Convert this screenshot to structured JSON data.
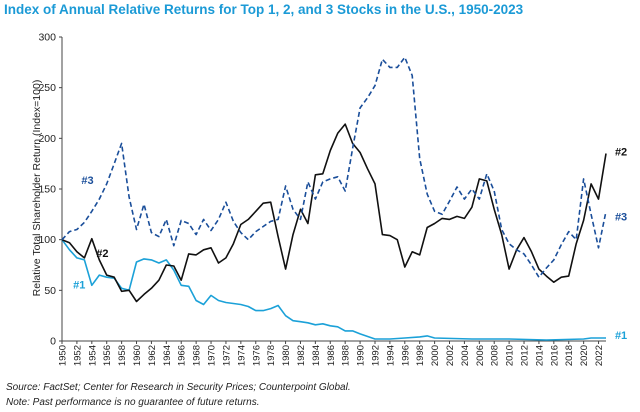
{
  "title": "Index of Annual Relative Returns for Top 1, 2, and 3 Stocks in the U.S., 1950-2023",
  "chart_data": {
    "type": "line",
    "ylabel": "Relative Total Shareholder Return (Index=100)",
    "xlabel": "",
    "ylim": [
      0,
      300
    ],
    "yticks": [
      0,
      50,
      100,
      150,
      200,
      250,
      300
    ],
    "xlim": [
      1950,
      2023
    ],
    "xticks": [
      1950,
      1952,
      1954,
      1956,
      1958,
      1960,
      1962,
      1964,
      1966,
      1968,
      1970,
      1972,
      1974,
      1976,
      1978,
      1980,
      1982,
      1984,
      1986,
      1988,
      1990,
      1992,
      1994,
      1996,
      1998,
      2000,
      2002,
      2004,
      2006,
      2008,
      2010,
      2012,
      2014,
      2016,
      2018,
      2020,
      2022
    ],
    "grid": false,
    "series": [
      {
        "name": "#1",
        "color": "#1ba1d8",
        "style": "solid",
        "x": [
          1950,
          1951,
          1952,
          1953,
          1954,
          1955,
          1956,
          1957,
          1958,
          1959,
          1960,
          1961,
          1962,
          1963,
          1964,
          1965,
          1966,
          1967,
          1968,
          1969,
          1970,
          1971,
          1972,
          1973,
          1974,
          1975,
          1976,
          1977,
          1978,
          1979,
          1980,
          1981,
          1982,
          1983,
          1984,
          1985,
          1986,
          1987,
          1988,
          1989,
          1990,
          1992,
          1994,
          1996,
          1998,
          1999,
          2000,
          2005,
          2010,
          2015,
          2020,
          2021,
          2022,
          2023
        ],
        "values": [
          100,
          90,
          82,
          80,
          55,
          65,
          63,
          62,
          52,
          50,
          78,
          81,
          80,
          77,
          80,
          70,
          55,
          54,
          40,
          36,
          45,
          40,
          38,
          37,
          36,
          34,
          30,
          30,
          32,
          35,
          25,
          20,
          19,
          18,
          16,
          17,
          15,
          14,
          10,
          10,
          7,
          2,
          2,
          3,
          4,
          5,
          3,
          2,
          2,
          1,
          2,
          3,
          3,
          3
        ]
      },
      {
        "name": "#2",
        "color": "#111111",
        "style": "solid",
        "x": [
          1950,
          1951,
          1952,
          1953,
          1954,
          1955,
          1956,
          1957,
          1958,
          1959,
          1960,
          1961,
          1962,
          1963,
          1964,
          1965,
          1966,
          1967,
          1968,
          1969,
          1970,
          1971,
          1972,
          1973,
          1974,
          1975,
          1976,
          1977,
          1978,
          1979,
          1980,
          1981,
          1982,
          1983,
          1984,
          1985,
          1986,
          1987,
          1988,
          1989,
          1990,
          1991,
          1992,
          1993,
          1994,
          1995,
          1996,
          1997,
          1998,
          1999,
          2000,
          2001,
          2002,
          2003,
          2004,
          2005,
          2006,
          2007,
          2008,
          2009,
          2010,
          2011,
          2012,
          2013,
          2014,
          2015,
          2016,
          2017,
          2018,
          2019,
          2020,
          2021,
          2022,
          2023
        ],
        "values": [
          100,
          97,
          88,
          82,
          101,
          80,
          65,
          63,
          49,
          50,
          39,
          46,
          52,
          60,
          75,
          74,
          60,
          86,
          85,
          90,
          92,
          77,
          82,
          96,
          115,
          120,
          128,
          136,
          137,
          103,
          71,
          105,
          130,
          116,
          164,
          165,
          188,
          205,
          214,
          195,
          186,
          170,
          155,
          105,
          104,
          100,
          73,
          88,
          85,
          112,
          116,
          121,
          120,
          123,
          121,
          132,
          160,
          158,
          130,
          105,
          71,
          90,
          102,
          88,
          71,
          64,
          58,
          63,
          64,
          96,
          119,
          155,
          140,
          185
        ]
      },
      {
        "name": "#3",
        "color": "#1a4e9a",
        "style": "dashed",
        "x": [
          1950,
          1951,
          1952,
          1953,
          1954,
          1955,
          1956,
          1957,
          1958,
          1959,
          1960,
          1961,
          1962,
          1963,
          1964,
          1965,
          1966,
          1967,
          1968,
          1969,
          1970,
          1971,
          1972,
          1973,
          1974,
          1975,
          1976,
          1977,
          1978,
          1979,
          1980,
          1981,
          1982,
          1983,
          1984,
          1985,
          1986,
          1987,
          1988,
          1989,
          1990,
          1991,
          1992,
          1993,
          1994,
          1995,
          1996,
          1997,
          1998,
          1999,
          2000,
          2001,
          2002,
          2003,
          2004,
          2005,
          2006,
          2007,
          2008,
          2009,
          2010,
          2011,
          2012,
          2013,
          2014,
          2015,
          2016,
          2017,
          2018,
          2019,
          2020,
          2021,
          2022,
          2023
        ],
        "values": [
          100,
          108,
          110,
          117,
          128,
          140,
          155,
          175,
          195,
          142,
          110,
          135,
          107,
          103,
          120,
          94,
          119,
          116,
          105,
          120,
          109,
          120,
          137,
          118,
          107,
          100,
          108,
          113,
          118,
          120,
          153,
          130,
          120,
          157,
          140,
          157,
          160,
          162,
          148,
          190,
          230,
          240,
          252,
          278,
          270,
          270,
          280,
          262,
          180,
          145,
          128,
          125,
          138,
          152,
          140,
          150,
          140,
          165,
          148,
          110,
          96,
          90,
          86,
          75,
          63,
          72,
          80,
          95,
          108,
          100,
          160,
          125,
          92,
          128
        ]
      }
    ],
    "series_labels": [
      {
        "text": "#1",
        "x": 1951.5,
        "y": 56
      },
      {
        "text": "#2",
        "x": 1954.6,
        "y": 87
      },
      {
        "text": "#3",
        "x": 1952.6,
        "y": 159
      },
      {
        "text": "#1",
        "x": 2024.2,
        "y": 6
      },
      {
        "text": "#2",
        "x": 2024.2,
        "y": 187
      },
      {
        "text": "#3",
        "x": 2024.2,
        "y": 123
      }
    ]
  },
  "footer": {
    "source": "Source: FactSet; Center for Research in Security Prices; Counterpoint Global.",
    "note": "Note: Past performance is no guarantee of future returns."
  }
}
